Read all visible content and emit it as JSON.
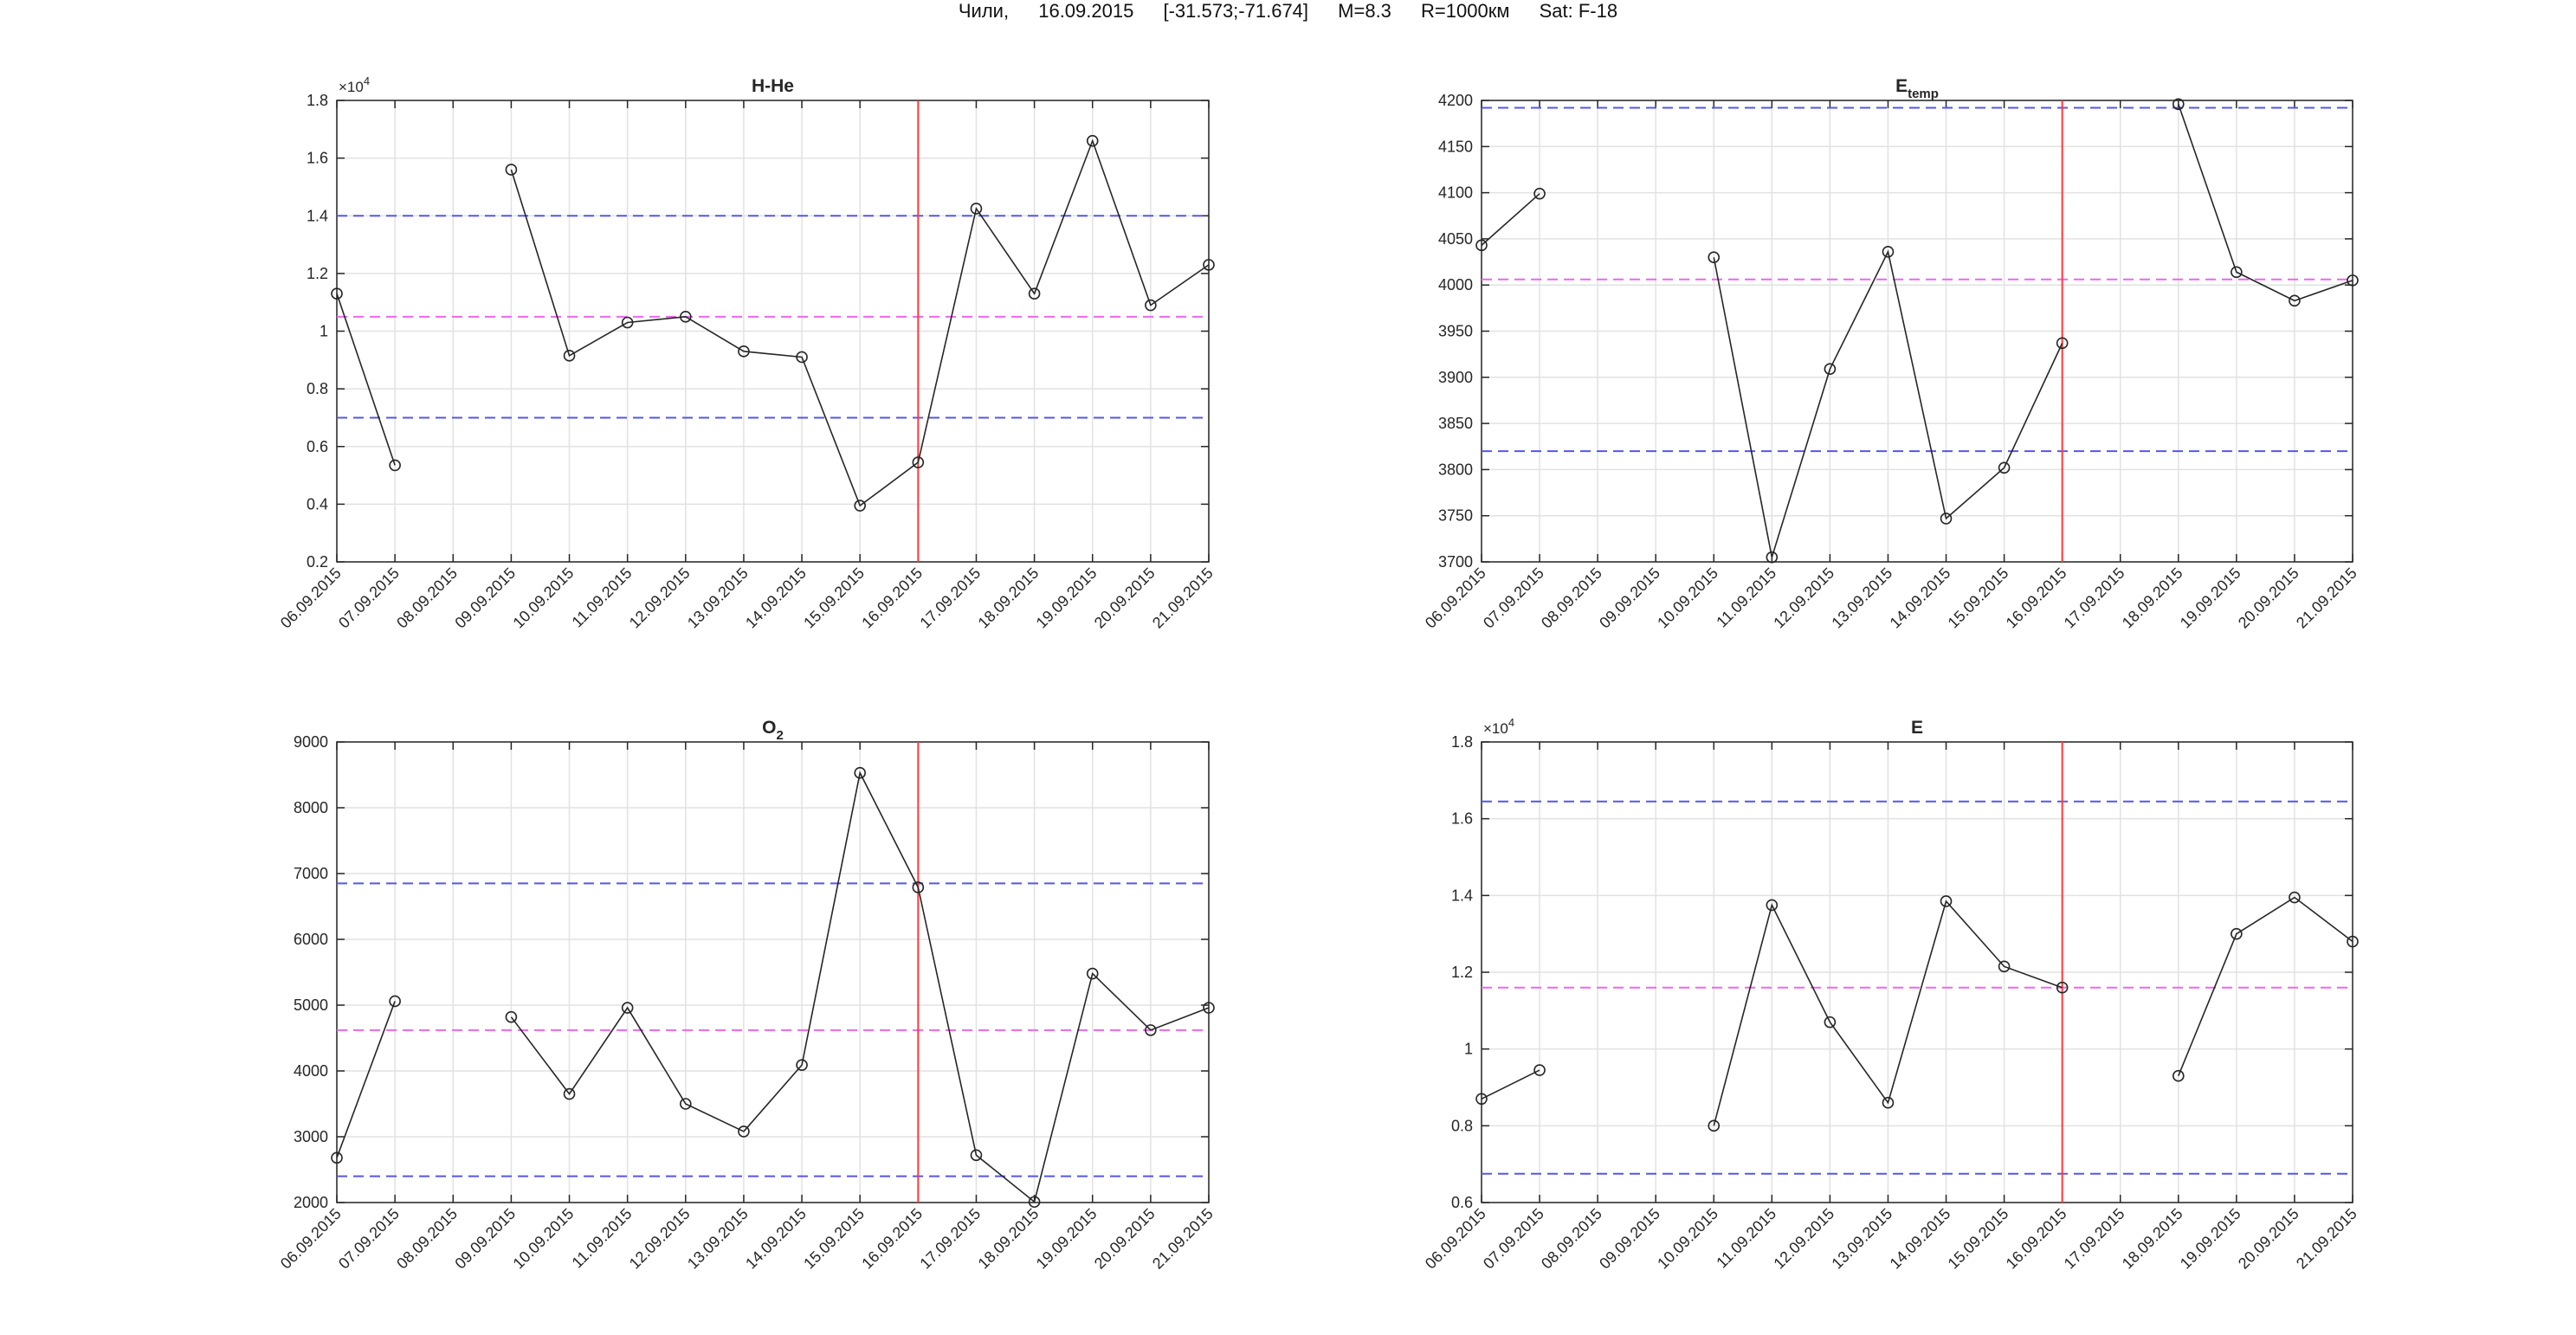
{
  "figure": {
    "title_parts": [
      "Чили,",
      "16.09.2015",
      "[-31.573;-71.674]",
      "M=8.3",
      "R=1000км",
      "Sat: F-18"
    ]
  },
  "colors": {
    "line": "#262626",
    "event_line": "#ff3b3b",
    "threshold_band": "#5555ee",
    "mean_line": "#ee66ee",
    "grid": "#e2e2e2",
    "axes": "#262626"
  },
  "chart_data": [
    {
      "id": "hhe",
      "type": "line",
      "title": "H-He",
      "title_main": "H-He",
      "title_sub": "",
      "sub_style": "",
      "exponent_label": "×10",
      "exponent": "4",
      "scale": 10000,
      "x": [
        "06.09.2015",
        "07.09.2015",
        "08.09.2015",
        "09.09.2015",
        "10.09.2015",
        "11.09.2015",
        "12.09.2015",
        "13.09.2015",
        "14.09.2015",
        "15.09.2015",
        "16.09.2015",
        "17.09.2015",
        "18.09.2015",
        "19.09.2015",
        "20.09.2015",
        "21.09.2015"
      ],
      "values": [
        11300,
        5350,
        null,
        15600,
        9150,
        10300,
        10500,
        9300,
        9100,
        3950,
        5450,
        14250,
        11300,
        16600,
        10900,
        12300
      ],
      "ylim": [
        2000,
        18000
      ],
      "yticks": [
        2000,
        4000,
        6000,
        8000,
        10000,
        12000,
        14000,
        16000,
        18000
      ],
      "ytick_labels": [
        "0.2",
        "0.4",
        "0.6",
        "0.8",
        "1",
        "1.2",
        "1.4",
        "1.6",
        "1.8"
      ],
      "upper_threshold": 14000,
      "mean": 10500,
      "lower_threshold": 7000,
      "event_date": "16.09.2015",
      "grid": true
    },
    {
      "id": "etemp",
      "type": "line",
      "title": "Etemp",
      "title_main": "E",
      "title_sub": "temp",
      "sub_style": "sub",
      "exponent_label": "",
      "exponent": "",
      "scale": 1,
      "x": [
        "06.09.2015",
        "07.09.2015",
        "08.09.2015",
        "09.09.2015",
        "10.09.2015",
        "11.09.2015",
        "12.09.2015",
        "13.09.2015",
        "14.09.2015",
        "15.09.2015",
        "16.09.2015",
        "17.09.2015",
        "18.09.2015",
        "19.09.2015",
        "20.09.2015",
        "21.09.2015"
      ],
      "values": [
        4043,
        4099,
        null,
        null,
        4030,
        3705,
        3909,
        4036,
        3747,
        3802,
        3937,
        null,
        4196,
        4014,
        3983,
        4005
      ],
      "ylim": [
        3700,
        4200
      ],
      "yticks": [
        3700,
        3750,
        3800,
        3850,
        3900,
        3950,
        4000,
        4050,
        4100,
        4150,
        4200
      ],
      "ytick_labels": [
        "3700",
        "3750",
        "3800",
        "3850",
        "3900",
        "3950",
        "4000",
        "4050",
        "4100",
        "4150",
        "4200"
      ],
      "upper_threshold": 4192,
      "mean": 4006,
      "lower_threshold": 3820,
      "event_date": "16.09.2015",
      "grid": true
    },
    {
      "id": "o2",
      "type": "line",
      "title": "O2",
      "title_main": "O",
      "title_sub": "2",
      "sub_style": "sub",
      "exponent_label": "",
      "exponent": "",
      "scale": 1,
      "x": [
        "06.09.2015",
        "07.09.2015",
        "08.09.2015",
        "09.09.2015",
        "10.09.2015",
        "11.09.2015",
        "12.09.2015",
        "13.09.2015",
        "14.09.2015",
        "15.09.2015",
        "16.09.2015",
        "17.09.2015",
        "18.09.2015",
        "19.09.2015",
        "20.09.2015",
        "21.09.2015"
      ],
      "values": [
        2680,
        5060,
        null,
        4820,
        3650,
        4960,
        3500,
        3080,
        4090,
        8530,
        6790,
        2720,
        2010,
        5480,
        4620,
        4960
      ],
      "ylim": [
        2000,
        9000
      ],
      "yticks": [
        2000,
        3000,
        4000,
        5000,
        6000,
        7000,
        8000,
        9000
      ],
      "ytick_labels": [
        "2000",
        "3000",
        "4000",
        "5000",
        "6000",
        "7000",
        "8000",
        "9000"
      ],
      "upper_threshold": 6850,
      "mean": 4620,
      "lower_threshold": 2400,
      "event_date": "16.09.2015",
      "grid": true
    },
    {
      "id": "e",
      "type": "line",
      "title": "E",
      "title_main": "E",
      "title_sub": "",
      "sub_style": "",
      "exponent_label": "×10",
      "exponent": "4",
      "scale": 10000,
      "x": [
        "06.09.2015",
        "07.09.2015",
        "08.09.2015",
        "09.09.2015",
        "10.09.2015",
        "11.09.2015",
        "12.09.2015",
        "13.09.2015",
        "14.09.2015",
        "15.09.2015",
        "16.09.2015",
        "17.09.2015",
        "18.09.2015",
        "19.09.2015",
        "20.09.2015",
        "21.09.2015"
      ],
      "values": [
        8700,
        9450,
        null,
        null,
        8000,
        13750,
        10700,
        8600,
        13850,
        12150,
        11600,
        null,
        9300,
        13000,
        13950,
        12800
      ],
      "ylim": [
        6000,
        18000
      ],
      "yticks": [
        6000,
        8000,
        10000,
        12000,
        14000,
        16000,
        18000
      ],
      "ytick_labels": [
        "0.6",
        "0.8",
        "1",
        "1.2",
        "1.4",
        "1.6",
        "1.8"
      ],
      "upper_threshold": 16450,
      "mean": 11600,
      "lower_threshold": 6750,
      "event_date": "16.09.2015",
      "grid": true
    }
  ]
}
